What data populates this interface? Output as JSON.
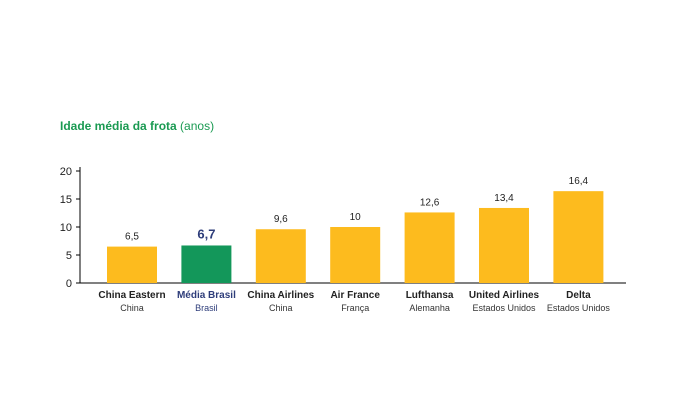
{
  "page": {
    "cut_text": "",
    "title_main": "Idade média da frota",
    "title_unit": "(anos)"
  },
  "colors": {
    "bar": "#FDBB1E",
    "highlight": "#13975A",
    "title": "#1A9A52",
    "highlight_text": "#2E3D7A",
    "axis": "#000000"
  },
  "chart_data": {
    "type": "bar",
    "title": "Idade média da frota (anos)",
    "categories": [
      "China Eastern",
      "Média Brasil",
      "China Airlines",
      "Air France",
      "Lufthansa",
      "United Airlines",
      "Delta"
    ],
    "subcategories": [
      "China",
      "Brasil",
      "China",
      "França",
      "Alemanha",
      "Estados Unidos",
      "Estados Unidos"
    ],
    "values": [
      6.5,
      6.7,
      9.6,
      10,
      12.6,
      13.4,
      16.4
    ],
    "value_labels": [
      "6,5",
      "6,7",
      "9,6",
      "10",
      "12,6",
      "13,4",
      "16,4"
    ],
    "highlight_index": 1,
    "ylim": [
      0,
      20
    ],
    "yticks": [
      0,
      5,
      10,
      15,
      20
    ],
    "xlabel": "",
    "ylabel": "",
    "grid": false,
    "legend": "none"
  }
}
